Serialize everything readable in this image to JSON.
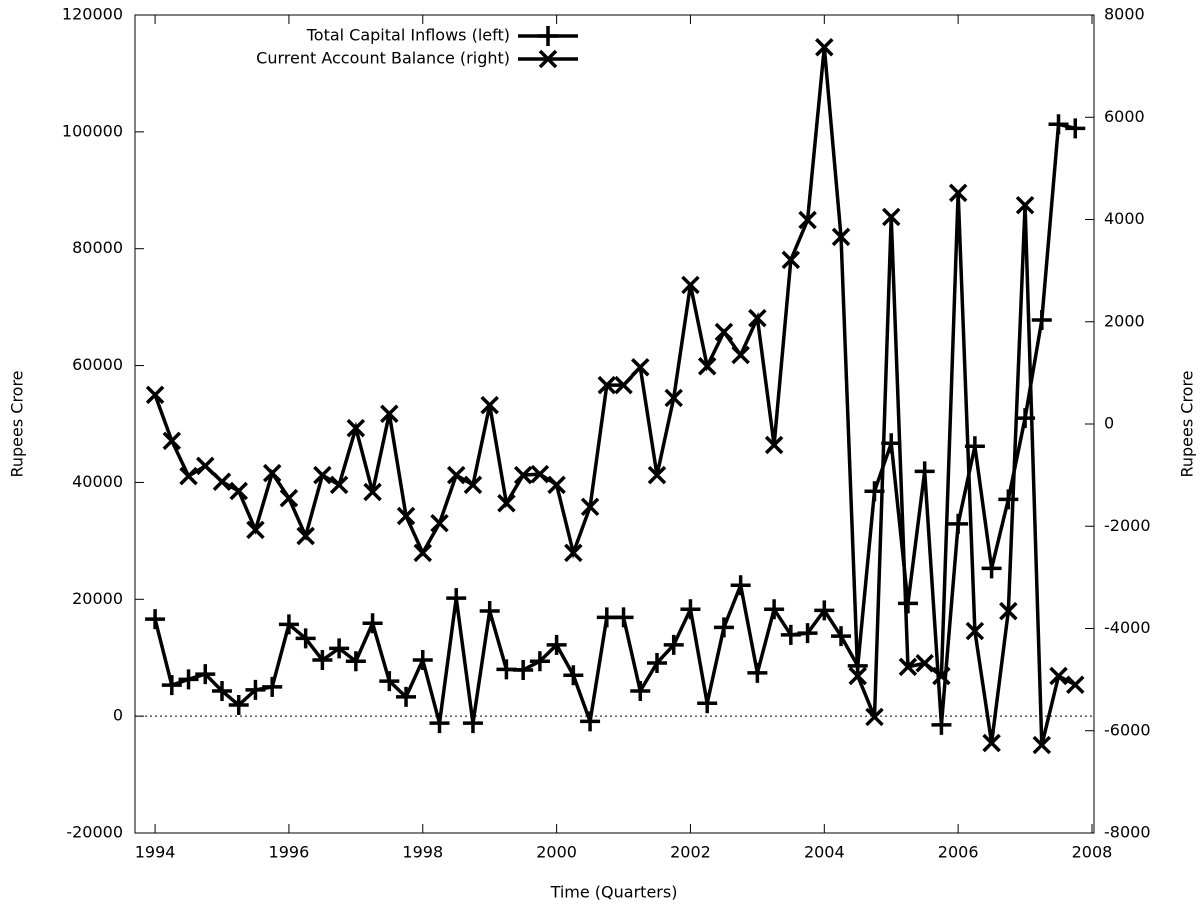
{
  "chart_data": {
    "type": "line",
    "x_label": "Time (Quarters)",
    "y_label": "Rupees Crore",
    "y2_label": "Rupees Crore",
    "x": [
      1994,
      1994.25,
      1994.5,
      1994.75,
      1995,
      1995.25,
      1995.5,
      1995.75,
      1996,
      1996.25,
      1996.5,
      1996.75,
      1997,
      1997.25,
      1997.5,
      1997.75,
      1998,
      1998.25,
      1998.5,
      1998.75,
      1999,
      1999.25,
      1999.5,
      1999.75,
      2000,
      2000.25,
      2000.5,
      2000.75,
      2001,
      2001.25,
      2001.5,
      2001.75,
      2002,
      2002.25,
      2002.5,
      2002.75,
      2003,
      2003.25,
      2003.5,
      2003.75,
      2004,
      2004.25,
      2004.5,
      2004.75,
      2005,
      2005.25,
      2005.5,
      2005.75,
      2006,
      2006.25,
      2006.5,
      2006.75,
      2007,
      2007.25,
      2007.5,
      2007.75
    ],
    "series": [
      {
        "name": "Total Capital Inflows (left)",
        "color": "#000000",
        "marker": "plus",
        "axis": "y",
        "values": [
          16600,
          5300,
          6300,
          7200,
          4300,
          1900,
          4500,
          5000,
          15700,
          13300,
          9600,
          11600,
          9400,
          15900,
          6000,
          3300,
          9600,
          -1200,
          20200,
          -1200,
          18000,
          8000,
          7900,
          9400,
          12200,
          7000,
          -900,
          16900,
          16900,
          4300,
          9100,
          12200,
          18300,
          2200,
          15200,
          22400,
          7400,
          18300,
          13900,
          14200,
          18100,
          13700,
          8600,
          38500,
          46700,
          19300,
          41900,
          -1500,
          32900,
          46200,
          25300,
          37100,
          51000,
          67800,
          101300,
          100600
        ]
      },
      {
        "name": "Current Account Balance (right)",
        "color": "#000000",
        "marker": "cross",
        "axis": "y2",
        "values": [
          570,
          -330,
          -1020,
          -820,
          -1130,
          -1310,
          -2070,
          -960,
          -1450,
          -2190,
          -1000,
          -1190,
          -80,
          -1330,
          200,
          -1800,
          -2520,
          -1940,
          -1000,
          -1190,
          370,
          -1550,
          -1000,
          -980,
          -1190,
          -2520,
          -1620,
          760,
          760,
          1110,
          -1000,
          510,
          2720,
          1130,
          1800,
          1350,
          2070,
          -410,
          3210,
          3990,
          7370,
          3660,
          -4930,
          -5730,
          4050,
          -4750,
          -4680,
          -4930,
          4520,
          -4050,
          -6240,
          -3660,
          4280,
          -6280,
          -4930,
          -5100
        ]
      }
    ],
    "xlim": [
      1993.7,
      2008.03
    ],
    "xticks": [
      1994,
      1996,
      1998,
      2000,
      2002,
      2004,
      2006,
      2008
    ],
    "ylim": [
      -20000,
      120000
    ],
    "yticks": [
      -20000,
      0,
      20000,
      40000,
      60000,
      80000,
      100000,
      120000
    ],
    "y2lim": [
      -8000,
      8000
    ],
    "y2ticks": [
      -8000,
      -6000,
      -4000,
      -2000,
      0,
      2000,
      4000,
      6000,
      8000
    ],
    "zero_axis": true,
    "legend": "top-left",
    "grid": false
  }
}
